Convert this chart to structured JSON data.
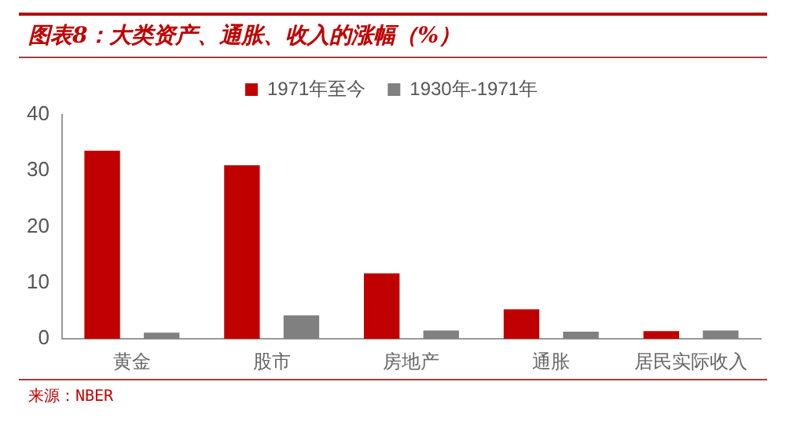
{
  "chart_data": {
    "type": "bar",
    "title": "图表8：大类资产、通胀、收入的涨幅（%）",
    "categories": [
      "黄金",
      "股市",
      "房地产",
      "通胀",
      "居民实际收入"
    ],
    "series": [
      {
        "name": "1971年至今",
        "color": "#c00000",
        "values": [
          33.6,
          31.0,
          11.7,
          5.3,
          1.4
        ]
      },
      {
        "name": "1930年-1971年",
        "color": "#808080",
        "values": [
          1.1,
          4.2,
          1.5,
          1.3,
          1.5
        ]
      }
    ],
    "ylim": [
      0,
      40
    ],
    "yticks": [
      0,
      10,
      20,
      30,
      40
    ],
    "grid": false,
    "legend": "top",
    "annotations": [
      "来源：NBER"
    ]
  }
}
